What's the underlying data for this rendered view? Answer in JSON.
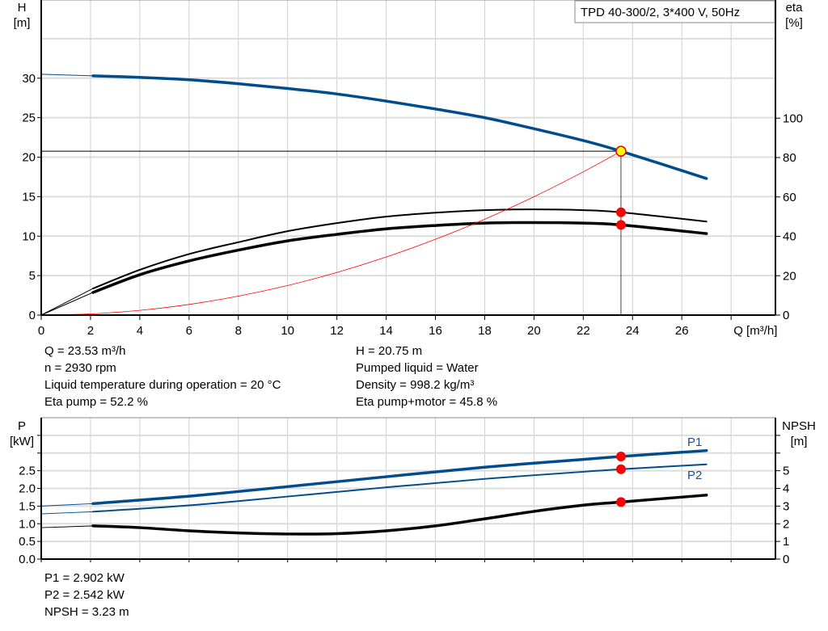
{
  "chart_data": [
    {
      "type": "line",
      "title_box": "TPD 40-300/2, 3*400 V, 50Hz",
      "xlabel": "Q [m³/h]",
      "ylabel_left": [
        "H",
        "[m]"
      ],
      "ylabel_right": [
        "eta",
        "[%]"
      ],
      "xlim": [
        0,
        29.8
      ],
      "ylim_left": [
        0,
        39.9
      ],
      "ylim_right": [
        0,
        160
      ],
      "x_ticks": [
        0,
        2,
        4,
        6,
        8,
        10,
        12,
        14,
        16,
        18,
        20,
        22,
        24,
        26
      ],
      "y_left_ticks": [
        0,
        5,
        10,
        15,
        20,
        25,
        30
      ],
      "y_right_ticks": [
        0,
        20,
        40,
        60,
        80,
        100
      ],
      "grid": true,
      "series": [
        {
          "axis": "left",
          "color": "#004c8c",
          "x": [
            0,
            2.1,
            4,
            6,
            8,
            10,
            12,
            14,
            16,
            18,
            20,
            22,
            23.53,
            27
          ],
          "y": [
            30.5,
            30.3,
            30.1,
            29.8,
            29.3,
            28.7,
            28.0,
            27.1,
            26.1,
            25.0,
            23.6,
            22.1,
            20.75,
            17.3
          ]
        },
        {
          "axis": "right",
          "color": "#000000",
          "x": [
            0,
            2.1,
            4,
            6,
            8,
            10,
            12,
            14,
            16,
            18,
            20,
            22,
            23.53,
            27
          ],
          "y": [
            0,
            13.5,
            23,
            31,
            37,
            42.6,
            46.7,
            50,
            52,
            53.3,
            53.7,
            53.3,
            52.2,
            47.5
          ]
        },
        {
          "axis": "right",
          "color": "#000000",
          "x": [
            0,
            2.1,
            4,
            6,
            8,
            10,
            12,
            14,
            16,
            18,
            20,
            22,
            23.53,
            27
          ],
          "y": [
            0,
            11.5,
            20.5,
            27.5,
            33,
            37.7,
            41,
            43.8,
            45.5,
            46.7,
            47,
            46.7,
            45.8,
            41.4
          ]
        },
        {
          "axis": "left",
          "color": "#ff0000",
          "x": [
            0,
            2,
            4,
            6,
            8,
            10,
            12,
            14,
            16,
            18,
            20,
            22,
            23.53
          ],
          "y": [
            0,
            0.15,
            0.6,
            1.35,
            2.4,
            3.75,
            5.4,
            7.35,
            9.6,
            12.14,
            14.99,
            18.14,
            20.75
          ]
        }
      ],
      "operating_point": {
        "Q": 23.53,
        "H": 20.75,
        "eta_pump": 52.2,
        "eta_pump_motor": 45.8
      }
    },
    {
      "type": "line",
      "ylabel_left": [
        "P",
        "[kW]"
      ],
      "ylabel_right": [
        "NPSH",
        "[m]"
      ],
      "xlim": [
        0,
        29.8
      ],
      "ylim_left": [
        0,
        4.0
      ],
      "ylim_right": [
        0,
        8.0
      ],
      "y_left_ticks": [
        "0.0",
        "0.5",
        "1.0",
        "1.5",
        "2.0",
        "2.5"
      ],
      "y_right_ticks": [
        "0",
        "1",
        "2",
        "3",
        "4",
        "5"
      ],
      "grid": true,
      "series": [
        {
          "name": "P1",
          "axis": "left",
          "color": "#004c8c",
          "x": [
            0,
            2.1,
            6,
            10,
            14,
            18,
            22,
            23.53,
            27
          ],
          "y": [
            1.5,
            1.57,
            1.78,
            2.05,
            2.33,
            2.6,
            2.82,
            2.902,
            3.07
          ]
        },
        {
          "name": "P2",
          "axis": "left",
          "color": "#004c8c",
          "x": [
            0,
            2.1,
            6,
            10,
            14,
            18,
            22,
            23.53,
            27
          ],
          "y": [
            1.28,
            1.34,
            1.52,
            1.77,
            2.03,
            2.27,
            2.47,
            2.542,
            2.68
          ]
        },
        {
          "axis": "right",
          "color": "#000000",
          "x": [
            0,
            2.1,
            4,
            6,
            8,
            10,
            12,
            14,
            16,
            18,
            20,
            22,
            23.53,
            27
          ],
          "y": [
            1.78,
            1.88,
            1.78,
            1.6,
            1.48,
            1.42,
            1.44,
            1.6,
            1.88,
            2.28,
            2.7,
            3.05,
            3.23,
            3.62
          ]
        }
      ]
    }
  ],
  "info_top": {
    "left": [
      "Q = 23.53 m³/h",
      "n = 2930 rpm",
      "Liquid temperature during operation = 20 °C",
      "Eta pump = 52.2 %"
    ],
    "right": [
      "H = 20.75 m",
      "Pumped liquid = Water",
      "Density = 998.2 kg/m³",
      "Eta pump+motor = 45.8 %"
    ]
  },
  "info_bottom": [
    "P1 = 2.902 kW",
    "P2 = 2.542 kW",
    "NPSH = 3.23 m"
  ]
}
